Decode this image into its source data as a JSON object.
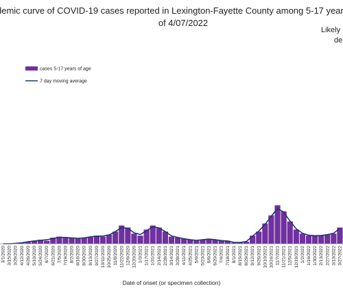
{
  "chart_data": {
    "type": "bar",
    "title": "pidemic curve of COVID-19 cases reported in Lexington-Fayette County among 5-17 year-",
    "subtitle": "of 4/07/2022",
    "annotations": [
      "Likely",
      "de"
    ],
    "x_label": "Date of onset (or specimen collection)",
    "categories": [
      "3/1/2020",
      "3/15/2020",
      "3/29/2020",
      "4/12/2020",
      "4/26/2020",
      "5/10/2020",
      "5/24/2020",
      "6/7/2020",
      "6/21/2020",
      "7/5/2020",
      "7/19/2020",
      "8/2/2020",
      "8/16/2020",
      "8/30/2020",
      "9/13/2020",
      "9/27/2020",
      "10/11/2020",
      "10/25/2020",
      "11/8/2020",
      "11/22/2020",
      "12/6/2020",
      "12/20/2020",
      "1/3/2021",
      "1/17/2021",
      "1/31/2021",
      "2/14/2021",
      "2/28/2021",
      "3/14/2021",
      "3/28/2021",
      "4/11/2021",
      "4/25/2021",
      "5/9/2021",
      "5/23/2021",
      "6/6/2021",
      "6/20/2021",
      "7/4/2021",
      "7/18/2021",
      "8/1/2021",
      "8/15/2021",
      "8/29/2021",
      "9/12/2021",
      "9/26/2021",
      "10/10/2021",
      "10/24/2021",
      "11/7/2021",
      "11/21/2021",
      "12/5/2021",
      "12/19/2021",
      "1/2/2022",
      "1/16/2022",
      "1/30/2022",
      "2/13/2022",
      "2/27/2022",
      "3/13/2022",
      "3/27/2022"
    ],
    "series": [
      {
        "name": "cases 5-17 years of age",
        "type": "bar",
        "color": "#7030a0",
        "values": [
          0,
          0,
          0,
          0.5,
          1,
          1.5,
          2,
          1.5,
          3,
          3.5,
          3,
          3,
          2.5,
          3,
          3.5,
          4,
          3.5,
          4.5,
          6,
          9,
          8,
          5,
          4,
          7,
          9,
          8,
          6,
          3.5,
          3,
          2.5,
          2,
          1.5,
          2,
          2.5,
          2,
          1.5,
          1.5,
          0.5,
          0.5,
          1,
          4,
          6,
          10,
          14,
          19,
          16,
          11,
          7,
          5,
          4,
          4,
          4,
          4.5,
          5,
          8
        ]
      },
      {
        "name": "7 day moving average",
        "type": "line",
        "color": "#1f3864",
        "values": [
          0,
          0,
          0.2,
          0.5,
          1,
          1.4,
          1.7,
          2,
          2.6,
          3.2,
          3.1,
          2.9,
          2.7,
          2.9,
          3.4,
          3.8,
          3.8,
          4.4,
          6,
          8,
          7.6,
          5.4,
          4.6,
          6.4,
          8.4,
          7.8,
          6,
          3.9,
          3.1,
          2.5,
          2,
          1.7,
          2,
          2.3,
          2,
          1.6,
          1.4,
          0.7,
          0.6,
          1.1,
          3.8,
          6.2,
          9.6,
          13.6,
          17.4,
          15.6,
          11.2,
          7.4,
          5.2,
          4.2,
          4,
          4.1,
          4.5,
          5.2,
          7.6
        ]
      }
    ],
    "ylim": [
      0,
      100
    ],
    "legend": "upper left"
  }
}
